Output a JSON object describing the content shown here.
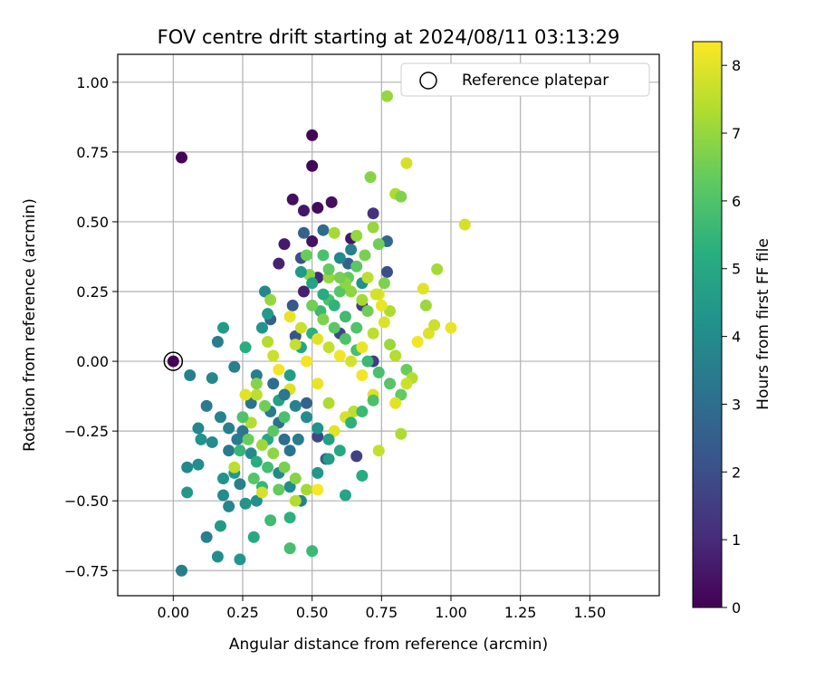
{
  "chart_data": {
    "type": "scatter",
    "title": "FOV centre drift starting at 2024/08/11 03:13:29",
    "xlabel": "Angular distance from reference (arcmin)",
    "ylabel": "Rotation from reference (arcmin)",
    "xlim": [
      -0.2,
      1.75
    ],
    "ylim": [
      -0.84,
      1.1
    ],
    "xticks": [
      "0.00",
      "0.25",
      "0.50",
      "0.75",
      "1.00",
      "1.25",
      "1.50"
    ],
    "yticks": [
      "1.00",
      "0.75",
      "0.50",
      "0.25",
      "0.00",
      "−0.25",
      "−0.50",
      "−0.75"
    ],
    "grid": true,
    "legend": {
      "placement": "top-right",
      "label": "Reference platepar"
    },
    "reference_point": {
      "x": 0.0,
      "y": 0.0
    },
    "colorbar": {
      "label": "Hours from first FF file",
      "range": [
        0,
        8.35
      ],
      "ticks": [
        "0",
        "1",
        "2",
        "3",
        "4",
        "5",
        "6",
        "7",
        "8"
      ],
      "colormap": "viridis"
    },
    "series": [
      {
        "points": [
          [
            0.03,
            0.73,
            0.1
          ],
          [
            0.5,
            0.81,
            0.1
          ],
          [
            0.5,
            0.7,
            0.1
          ],
          [
            0.43,
            0.58,
            0.3
          ],
          [
            0.47,
            0.54,
            0.5
          ],
          [
            0.52,
            0.55,
            0.2
          ],
          [
            0.57,
            0.57,
            0.3
          ],
          [
            0.5,
            0.43,
            0.4
          ],
          [
            0.4,
            0.42,
            0.6
          ],
          [
            0.38,
            0.35,
            0.8
          ],
          [
            0.47,
            0.25,
            0.7
          ],
          [
            0.52,
            0.3,
            1.0
          ],
          [
            0.64,
            0.44,
            0.5
          ],
          [
            0.72,
            0.53,
            1.2
          ],
          [
            0.68,
            0.2,
            1.5
          ],
          [
            0.6,
            0.1,
            1.8
          ],
          [
            0.77,
            0.32,
            2.0
          ],
          [
            0.72,
            0.0,
            1.5
          ],
          [
            0.66,
            -0.34,
            1.6
          ],
          [
            0.52,
            -0.27,
            1.8
          ],
          [
            0.35,
            0.15,
            2.5
          ],
          [
            0.43,
            0.2,
            2.3
          ],
          [
            0.47,
            0.46,
            2.6
          ],
          [
            0.54,
            0.47,
            2.9
          ],
          [
            0.63,
            0.35,
            2.5
          ],
          [
            0.77,
            0.43,
            2.8
          ],
          [
            0.44,
            0.09,
            2.2
          ],
          [
            0.48,
            -0.15,
            2.7
          ],
          [
            0.55,
            -0.35,
            2.4
          ],
          [
            0.46,
            0.37,
            2.0
          ],
          [
            0.03,
            -0.75,
            3.5
          ],
          [
            0.06,
            -0.05,
            3.6
          ],
          [
            0.14,
            -0.06,
            3.8
          ],
          [
            0.16,
            0.07,
            3.5
          ],
          [
            0.12,
            -0.16,
            3.4
          ],
          [
            0.09,
            -0.24,
            3.8
          ],
          [
            0.1,
            -0.28,
            4.2
          ],
          [
            0.14,
            -0.29,
            4.0
          ],
          [
            0.17,
            -0.2,
            3.7
          ],
          [
            0.2,
            -0.24,
            3.6
          ],
          [
            0.23,
            -0.28,
            3.5
          ],
          [
            0.25,
            -0.25,
            3.3
          ],
          [
            0.28,
            -0.33,
            3.9
          ],
          [
            0.2,
            -0.32,
            3.4
          ],
          [
            0.18,
            -0.42,
            4.2
          ],
          [
            0.22,
            -0.4,
            4.4
          ],
          [
            0.24,
            -0.44,
            3.6
          ],
          [
            0.18,
            -0.48,
            4.0
          ],
          [
            0.2,
            -0.52,
            3.8
          ],
          [
            0.26,
            -0.51,
            4.3
          ],
          [
            0.3,
            -0.5,
            4.1
          ],
          [
            0.17,
            -0.59,
            4.5
          ],
          [
            0.12,
            -0.63,
            3.6
          ],
          [
            0.16,
            -0.7,
            4.1
          ],
          [
            0.24,
            -0.71,
            4.4
          ],
          [
            0.29,
            -0.63,
            5.0
          ],
          [
            0.05,
            -0.38,
            3.8
          ],
          [
            0.09,
            -0.37,
            4.1
          ],
          [
            0.05,
            -0.47,
            4.4
          ],
          [
            0.18,
            0.12,
            4.5
          ],
          [
            0.26,
            0.05,
            5.2
          ],
          [
            0.22,
            -0.02,
            3.6
          ],
          [
            0.3,
            -0.05,
            3.5
          ],
          [
            0.33,
            0.25,
            3.8
          ],
          [
            0.34,
            0.17,
            4.5
          ],
          [
            0.32,
            0.12,
            4.3
          ],
          [
            0.28,
            -0.15,
            3.2
          ],
          [
            0.35,
            -0.18,
            3.4
          ],
          [
            0.38,
            -0.22,
            3.1
          ],
          [
            0.4,
            -0.28,
            3.0
          ],
          [
            0.42,
            -0.32,
            3.2
          ],
          [
            0.45,
            -0.28,
            3.5
          ],
          [
            0.38,
            -0.4,
            3.8
          ],
          [
            0.42,
            -0.45,
            4.0
          ],
          [
            0.46,
            -0.5,
            3.7
          ],
          [
            0.52,
            -0.4,
            4.4
          ],
          [
            0.56,
            -0.35,
            4.6
          ],
          [
            0.62,
            -0.48,
            4.9
          ],
          [
            0.68,
            -0.41,
            5.1
          ],
          [
            0.42,
            -0.56,
            5.3
          ],
          [
            0.42,
            -0.67,
            5.8
          ],
          [
            0.5,
            -0.68,
            5.6
          ],
          [
            0.35,
            -0.57,
            5.7
          ],
          [
            0.32,
            -0.45,
            5.5
          ],
          [
            0.3,
            -0.36,
            5.2
          ],
          [
            0.34,
            -0.28,
            5.0
          ],
          [
            0.38,
            -0.14,
            4.8
          ],
          [
            0.42,
            -0.05,
            4.6
          ],
          [
            0.46,
            0.05,
            4.9
          ],
          [
            0.5,
            0.1,
            5.3
          ],
          [
            0.53,
            0.18,
            5.6
          ],
          [
            0.56,
            0.22,
            5.9
          ],
          [
            0.6,
            0.25,
            6.1
          ],
          [
            0.63,
            0.3,
            6.3
          ],
          [
            0.66,
            0.34,
            6.2
          ],
          [
            0.69,
            0.38,
            6.6
          ],
          [
            0.71,
            0.66,
            6.8
          ],
          [
            0.72,
            0.48,
            7.0
          ],
          [
            0.74,
            0.42,
            6.5
          ],
          [
            0.76,
            0.28,
            6.7
          ],
          [
            0.8,
            0.6,
            7.3
          ],
          [
            0.82,
            0.59,
            6.7
          ],
          [
            0.84,
            0.71,
            7.8
          ],
          [
            0.77,
            0.95,
            7.0
          ],
          [
            0.66,
            0.45,
            7.0
          ],
          [
            0.58,
            0.46,
            7.2
          ],
          [
            0.48,
            0.38,
            6.4
          ],
          [
            0.49,
            0.31,
            6.8
          ],
          [
            0.56,
            0.3,
            7.0
          ],
          [
            0.62,
            0.28,
            6.9
          ],
          [
            0.5,
            0.2,
            6.5
          ],
          [
            0.54,
            0.15,
            6.7
          ],
          [
            0.58,
            0.12,
            6.2
          ],
          [
            0.62,
            0.08,
            6.0
          ],
          [
            0.66,
            0.04,
            5.8
          ],
          [
            0.7,
            0.0,
            5.6
          ],
          [
            0.74,
            -0.04,
            5.9
          ],
          [
            0.78,
            -0.08,
            6.1
          ],
          [
            0.82,
            -0.12,
            6.3
          ],
          [
            0.84,
            -0.03,
            6.4
          ],
          [
            0.86,
            -0.06,
            7.4
          ],
          [
            0.88,
            0.07,
            8.2
          ],
          [
            0.9,
            0.26,
            8.0
          ],
          [
            0.91,
            0.2,
            7.1
          ],
          [
            0.92,
            0.1,
            7.9
          ],
          [
            0.94,
            0.13,
            7.7
          ],
          [
            0.95,
            0.33,
            7.2
          ],
          [
            1.0,
            0.12,
            8.1
          ],
          [
            1.05,
            0.49,
            7.8
          ],
          [
            0.84,
            -0.08,
            7.7
          ],
          [
            0.82,
            -0.26,
            7.3
          ],
          [
            0.8,
            -0.15,
            8.0
          ],
          [
            0.74,
            -0.32,
            7.6
          ],
          [
            0.72,
            -0.12,
            7.9
          ],
          [
            0.68,
            -0.05,
            8.2
          ],
          [
            0.65,
            -0.18,
            7.5
          ],
          [
            0.62,
            -0.2,
            7.8
          ],
          [
            0.58,
            -0.25,
            8.0
          ],
          [
            0.56,
            -0.15,
            7.3
          ],
          [
            0.52,
            -0.08,
            8.1
          ],
          [
            0.48,
            0.0,
            8.2
          ],
          [
            0.44,
            0.06,
            7.6
          ],
          [
            0.42,
            -0.1,
            7.9
          ],
          [
            0.38,
            -0.03,
            8.2
          ],
          [
            0.36,
            0.02,
            7.7
          ],
          [
            0.34,
            0.07,
            7.4
          ],
          [
            0.3,
            -0.12,
            7.5
          ],
          [
            0.26,
            -0.12,
            8.0
          ],
          [
            0.28,
            -0.22,
            7.4
          ],
          [
            0.32,
            -0.3,
            7.1
          ],
          [
            0.36,
            -0.33,
            6.9
          ],
          [
            0.4,
            -0.38,
            6.6
          ],
          [
            0.44,
            -0.42,
            6.8
          ],
          [
            0.48,
            -0.46,
            7.2
          ],
          [
            0.52,
            -0.46,
            8.3
          ],
          [
            0.32,
            -0.47,
            7.8
          ],
          [
            0.22,
            -0.38,
            7.5
          ],
          [
            0.44,
            -0.5,
            7.4
          ],
          [
            0.35,
            0.22,
            7.0
          ],
          [
            0.42,
            0.16,
            8.1
          ],
          [
            0.46,
            0.12,
            7.7
          ],
          [
            0.52,
            0.08,
            8.0
          ],
          [
            0.56,
            0.05,
            7.6
          ],
          [
            0.6,
            0.02,
            8.2
          ],
          [
            0.64,
            0.0,
            7.8
          ],
          [
            0.68,
            0.05,
            8.1
          ],
          [
            0.72,
            0.1,
            7.5
          ],
          [
            0.76,
            0.14,
            7.9
          ],
          [
            0.78,
            0.18,
            7.3
          ],
          [
            0.74,
            0.24,
            8.0
          ],
          [
            0.7,
            0.18,
            6.5
          ],
          [
            0.66,
            0.12,
            6.0
          ],
          [
            0.62,
            0.16,
            5.7
          ],
          [
            0.58,
            0.2,
            5.4
          ],
          [
            0.54,
            0.24,
            5.1
          ],
          [
            0.5,
            0.28,
            4.8
          ],
          [
            0.46,
            0.32,
            4.5
          ],
          [
            0.6,
            0.37,
            3.9
          ],
          [
            0.64,
            0.4,
            3.6
          ],
          [
            0.68,
            0.28,
            4.2
          ],
          [
            0.36,
            -0.08,
            3.0
          ],
          [
            0.4,
            -0.12,
            3.3
          ],
          [
            0.44,
            -0.16,
            3.7
          ],
          [
            0.48,
            -0.2,
            4.0
          ],
          [
            0.52,
            -0.24,
            4.3
          ],
          [
            0.56,
            -0.28,
            4.7
          ],
          [
            0.6,
            -0.32,
            5.0
          ],
          [
            0.64,
            -0.22,
            5.3
          ],
          [
            0.68,
            -0.18,
            5.6
          ],
          [
            0.72,
            -0.14,
            5.9
          ],
          [
            0.4,
            -0.2,
            5.9
          ],
          [
            0.36,
            -0.25,
            6.2
          ],
          [
            0.33,
            -0.16,
            6.5
          ],
          [
            0.3,
            -0.08,
            6.8
          ],
          [
            0.27,
            -0.28,
            6.4
          ],
          [
            0.25,
            -0.2,
            6.0
          ],
          [
            0.24,
            -0.32,
            5.5
          ],
          [
            0.29,
            -0.42,
            6.1
          ],
          [
            0.34,
            -0.38,
            5.8
          ],
          [
            0.38,
            -0.46,
            6.3
          ],
          [
            0.54,
            0.38,
            5.9
          ],
          [
            0.56,
            0.33,
            6.3
          ],
          [
            0.6,
            0.3,
            6.6
          ],
          [
            0.64,
            0.25,
            6.9
          ],
          [
            0.68,
            0.22,
            7.2
          ],
          [
            0.7,
            0.3,
            7.5
          ],
          [
            0.73,
            0.24,
            7.8
          ],
          [
            0.75,
            0.2,
            8.1
          ],
          [
            0.78,
            0.06,
            7.1
          ],
          [
            0.8,
            0.02,
            7.4
          ]
        ]
      }
    ]
  }
}
